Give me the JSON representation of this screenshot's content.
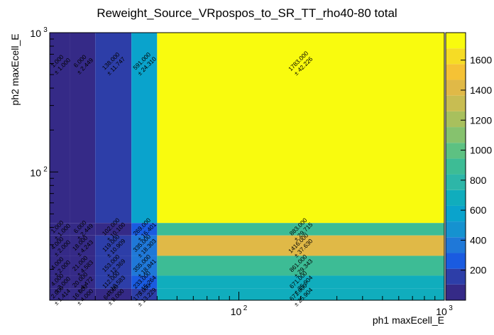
{
  "chart_data": {
    "type": "heatmap",
    "title": "Reweight_Source_VRpospos_to_SR_TT_rho40-80 total",
    "xlabel": "ph1 maxEcell_E",
    "ylabel": "ph2 maxEcell_E",
    "x_scale": "log",
    "y_scale": "log",
    "xlim": [
      12,
      1000
    ],
    "ylim": [
      12,
      1000
    ],
    "x_edges": [
      12,
      15,
      20,
      30,
      40,
      1000
    ],
    "y_edges": [
      12,
      14.5,
      18,
      25,
      35,
      43,
      1000
    ],
    "x_major_ticks": [
      {
        "value": 100,
        "base": "10",
        "exp": "2"
      },
      {
        "value": 1000,
        "base": "10",
        "exp": "3"
      }
    ],
    "y_major_ticks": [
      {
        "value": 100,
        "base": "10",
        "exp": "2"
      },
      {
        "value": 1000,
        "base": "10",
        "exp": "3"
      }
    ],
    "colorbar": {
      "min": 0,
      "max": 1783,
      "ticks": [
        200,
        400,
        600,
        800,
        1000,
        1200,
        1400,
        1600
      ]
    },
    "cells": [
      {
        "ix": 0,
        "iy": 5,
        "value": 1.0,
        "label": "1.000",
        "err": "± 1.000"
      },
      {
        "ix": 0,
        "iy": 4,
        "value": 1.0,
        "label": "1.000",
        "err": "± 1.000"
      },
      {
        "ix": 0,
        "iy": 3,
        "value": 4.0,
        "label": "4.000",
        "err": "± 2.000"
      },
      {
        "ix": 0,
        "iy": 2,
        "value": 4.0,
        "label": "4.000",
        "err": "± 2.000"
      },
      {
        "ix": 0,
        "iy": 1,
        "value": 4.0,
        "label": "4.000",
        "err": "± 2.000"
      },
      {
        "ix": 0,
        "iy": 0,
        "value": 2.0,
        "label": "2.000",
        "err": "± 1.414"
      },
      {
        "ix": 1,
        "iy": 5,
        "value": 6.0,
        "label": "6.000",
        "err": "± 2.449"
      },
      {
        "ix": 1,
        "iy": 4,
        "value": 6.0,
        "label": "6.000",
        "err": "± 2.449"
      },
      {
        "ix": 1,
        "iy": 3,
        "value": 18.0,
        "label": "18.000",
        "err": "± 4.243"
      },
      {
        "ix": 1,
        "iy": 2,
        "value": 21.0,
        "label": "21.000",
        "err": "± 4.583"
      },
      {
        "ix": 1,
        "iy": 1,
        "value": 20.0,
        "label": "20.000",
        "err": "± 4.472"
      },
      {
        "ix": 1,
        "iy": 0,
        "value": 16.0,
        "label": "16.000",
        "err": "± 4.000"
      },
      {
        "ix": 2,
        "iy": 5,
        "value": 138.0,
        "label": "138.000",
        "err": "± 11.747"
      },
      {
        "ix": 2,
        "iy": 4,
        "value": 102.0,
        "label": "102.000",
        "err": "± 10.100"
      },
      {
        "ix": 2,
        "iy": 3,
        "value": 119.0,
        "label": "119.000",
        "err": "± 10.909"
      },
      {
        "ix": 2,
        "iy": 2,
        "value": 153.0,
        "label": "153.000",
        "err": "± 12.369"
      },
      {
        "ix": 2,
        "iy": 1,
        "value": 112.0,
        "label": "112.000",
        "err": "± 10.583"
      },
      {
        "ix": 2,
        "iy": 0,
        "value": 64.0,
        "label": "64.000",
        "err": "± 8.000"
      },
      {
        "ix": 3,
        "iy": 5,
        "value": 591.0,
        "label": "591.000",
        "err": "± 24.310"
      },
      {
        "ix": 3,
        "iy": 4,
        "value": 269.0,
        "label": "269.000",
        "err": "± 16.401"
      },
      {
        "ix": 3,
        "iy": 3,
        "value": 335.0,
        "label": "335.000",
        "err": "± 18.303"
      },
      {
        "ix": 3,
        "iy": 2,
        "value": 355.0,
        "label": "355.000",
        "err": "± 18.841"
      },
      {
        "ix": 3,
        "iy": 1,
        "value": 233.0,
        "label": "233.000",
        "err": "± 15.264"
      },
      {
        "ix": 3,
        "iy": 0,
        "value": 175.0,
        "label": "175.000",
        "err": "± 13.229"
      },
      {
        "ix": 4,
        "iy": 5,
        "value": 1783.0,
        "label": "1783.000",
        "err": "± 42.226"
      },
      {
        "ix": 4,
        "iy": 4,
        "value": 883.0,
        "label": "883.000",
        "err": "± 29.715"
      },
      {
        "ix": 4,
        "iy": 3,
        "value": 1416.0,
        "label": "1416.000",
        "err": "± 37.630"
      },
      {
        "ix": 4,
        "iy": 2,
        "value": 861.0,
        "label": "861.000",
        "err": "± 29.343"
      },
      {
        "ix": 4,
        "iy": 1,
        "value": 671.0,
        "label": "671.000",
        "err": "± 25.904"
      },
      {
        "ix": 4,
        "iy": 0,
        "value": 671.0,
        "label": "671.000",
        "err": "± 25.904"
      }
    ],
    "palette": [
      "#352a87",
      "#2d3ea8",
      "#1a5be0",
      "#1f78d8",
      "#1592d0",
      "#0aa3cc",
      "#10adbd",
      "#2db6a8",
      "#3dbc95",
      "#5dc182",
      "#86c26e",
      "#a8c05d",
      "#c8bd52",
      "#e0b947",
      "#f5c235",
      "#f6dc25",
      "#f9fb0e"
    ]
  }
}
